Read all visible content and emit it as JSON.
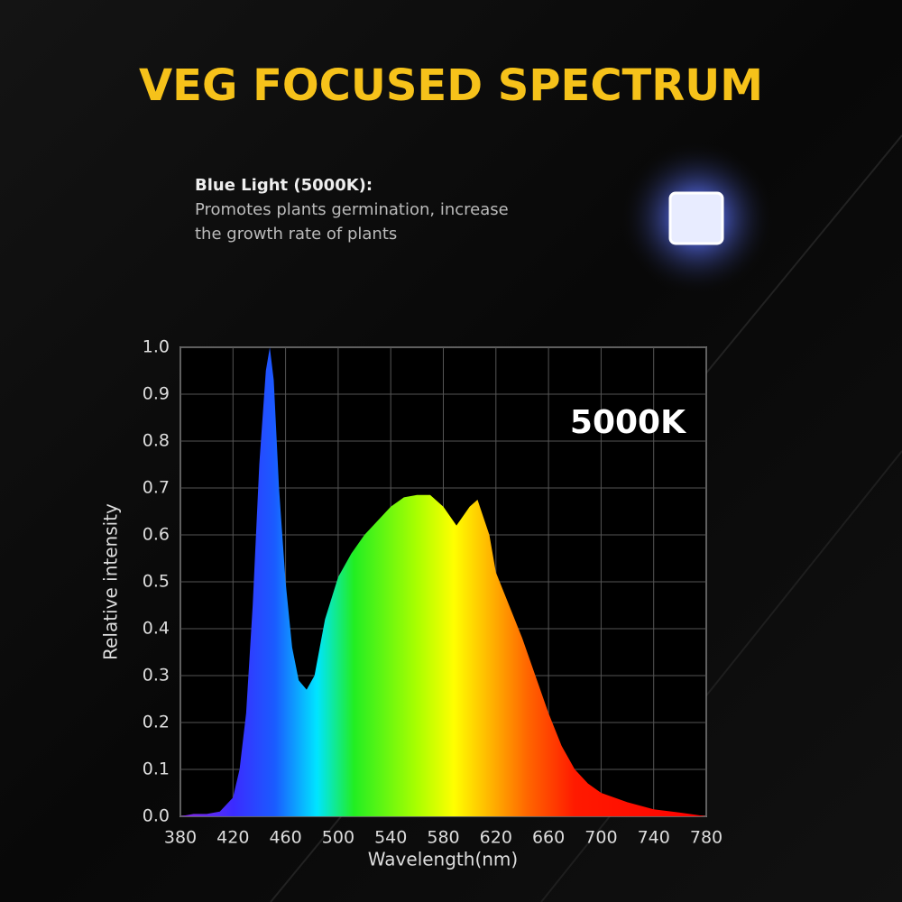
{
  "header": {
    "title": "VEG FOCUSED SPECTRUM"
  },
  "info": {
    "heading": "Blue Light (5000K):",
    "lines": [
      "Promotes plants germination, increase",
      "the growth rate of plants"
    ]
  },
  "chart_data": {
    "type": "area",
    "annotation": "5000K",
    "xlabel": "Wavelength(nm)",
    "ylabel": "Relative intensity",
    "x": [
      380,
      390,
      400,
      410,
      420,
      425,
      430,
      435,
      440,
      445,
      448,
      451,
      455,
      460,
      465,
      470,
      476,
      482,
      490,
      500,
      510,
      520,
      530,
      540,
      550,
      560,
      570,
      580,
      590,
      600,
      606,
      615,
      620,
      630,
      640,
      650,
      660,
      670,
      680,
      690,
      700,
      720,
      740,
      760,
      780
    ],
    "y": [
      0.0,
      0.005,
      0.005,
      0.01,
      0.04,
      0.1,
      0.22,
      0.45,
      0.75,
      0.95,
      1.0,
      0.93,
      0.7,
      0.5,
      0.36,
      0.29,
      0.27,
      0.3,
      0.42,
      0.51,
      0.56,
      0.6,
      0.63,
      0.66,
      0.68,
      0.685,
      0.685,
      0.66,
      0.62,
      0.66,
      0.675,
      0.6,
      0.52,
      0.45,
      0.38,
      0.3,
      0.22,
      0.15,
      0.1,
      0.07,
      0.05,
      0.03,
      0.015,
      0.008,
      0.0
    ],
    "xlim": [
      380,
      780
    ],
    "ylim": [
      0,
      1.0
    ],
    "xticks": [
      380,
      420,
      460,
      500,
      540,
      580,
      620,
      660,
      700,
      740,
      780
    ],
    "yticks": [
      {
        "value": 0,
        "label": "0.0"
      },
      0.1,
      0.2,
      0.3,
      0.4,
      0.5,
      0.6,
      0.7,
      0.8,
      0.9,
      {
        "value": 1.0,
        "label": "1.0"
      }
    ],
    "grid": true
  }
}
